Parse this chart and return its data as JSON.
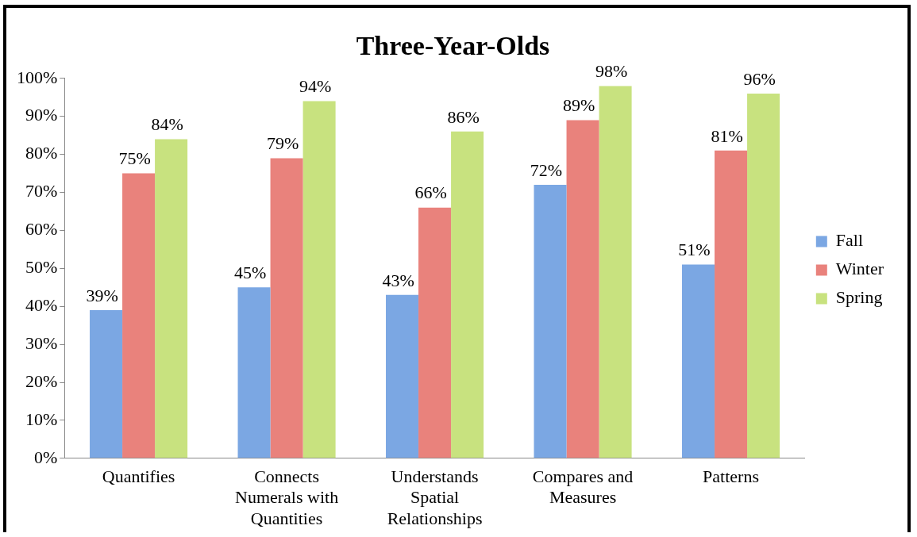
{
  "chart_data": {
    "type": "bar",
    "title": "Three-Year-Olds",
    "categories": [
      "Quantifies",
      "Connects Numerals with Quantities",
      "Understands Spatial Relationships",
      "Compares and Measures",
      "Patterns"
    ],
    "series": [
      {
        "name": "Fall",
        "color": "#7ba7e3",
        "values": [
          39,
          45,
          43,
          72,
          51
        ],
        "value_labels": [
          "39%",
          "45%",
          "43%",
          "72%",
          "51%"
        ]
      },
      {
        "name": "Winter",
        "color": "#e9827c",
        "values": [
          75,
          79,
          66,
          89,
          81
        ],
        "value_labels": [
          "75%",
          "79%",
          "66%",
          "89%",
          "81%"
        ]
      },
      {
        "name": "Spring",
        "color": "#c8e27f",
        "values": [
          84,
          94,
          86,
          98,
          96
        ],
        "value_labels": [
          "84%",
          "94%",
          "86%",
          "98%",
          "96%"
        ]
      }
    ],
    "ylim": [
      0,
      100
    ],
    "yticks": [
      {
        "value": 0,
        "label": "0%"
      },
      {
        "value": 10,
        "label": "10%"
      },
      {
        "value": 20,
        "label": "20%"
      },
      {
        "value": 30,
        "label": "30%"
      },
      {
        "value": 40,
        "label": "40%"
      },
      {
        "value": 50,
        "label": "50%"
      },
      {
        "value": 60,
        "label": "60%"
      },
      {
        "value": 70,
        "label": "70%"
      },
      {
        "value": 80,
        "label": "80%"
      },
      {
        "value": 90,
        "label": "90%"
      },
      {
        "value": 100,
        "label": "100%"
      }
    ],
    "grid": false,
    "legend": "right"
  }
}
